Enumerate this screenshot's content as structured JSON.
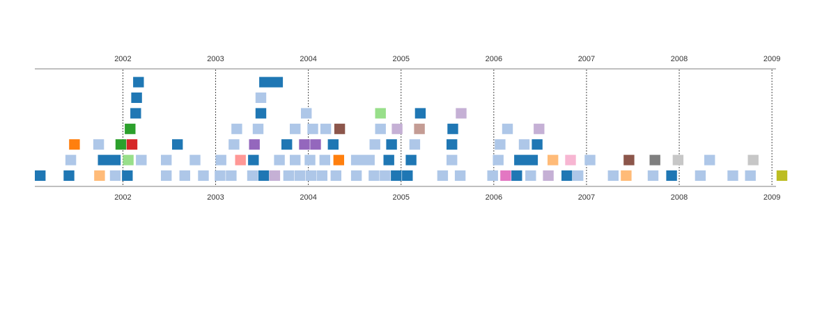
{
  "chart_data": {
    "type": "timeline",
    "title": "",
    "xlabel": "",
    "ylabel": "",
    "x_axis": {
      "scale": "time",
      "ticks": [
        "2002",
        "2003",
        "2004",
        "2005",
        "2006",
        "2007",
        "2008",
        "2009"
      ],
      "top_ticks_shown": true,
      "bottom_ticks_shown": true,
      "range": [
        2001.05,
        2009.05
      ]
    },
    "grid": "vertical dotted lines at year ticks",
    "legend": "none",
    "lanes": 7,
    "events": [
      {
        "start": 2001.05,
        "end": 2001.17,
        "lane": 0,
        "color": "#1f77b4"
      },
      {
        "start": 2001.36,
        "end": 2001.48,
        "lane": 0,
        "color": "#1f77b4"
      },
      {
        "start": 2001.69,
        "end": 2001.81,
        "lane": 0,
        "color": "#ffbb78"
      },
      {
        "start": 2001.86,
        "end": 2001.98,
        "lane": 0,
        "color": "#aec7e8"
      },
      {
        "start": 2001.99,
        "end": 2002.11,
        "lane": 0,
        "color": "#1f77b4"
      },
      {
        "start": 2002.41,
        "end": 2002.53,
        "lane": 0,
        "color": "#aec7e8"
      },
      {
        "start": 2002.61,
        "end": 2002.73,
        "lane": 0,
        "color": "#aec7e8"
      },
      {
        "start": 2002.81,
        "end": 2002.93,
        "lane": 0,
        "color": "#aec7e8"
      },
      {
        "start": 2002.99,
        "end": 2003.11,
        "lane": 0,
        "color": "#aec7e8"
      },
      {
        "start": 2003.11,
        "end": 2003.23,
        "lane": 0,
        "color": "#aec7e8"
      },
      {
        "start": 2003.34,
        "end": 2003.46,
        "lane": 0,
        "color": "#aec7e8"
      },
      {
        "start": 2003.46,
        "end": 2003.58,
        "lane": 0,
        "color": "#1f77b4"
      },
      {
        "start": 2003.58,
        "end": 2003.7,
        "lane": 0,
        "color": "#c5b0d5"
      },
      {
        "start": 2003.73,
        "end": 2003.85,
        "lane": 0,
        "color": "#aec7e8"
      },
      {
        "start": 2003.85,
        "end": 2003.97,
        "lane": 0,
        "color": "#aec7e8"
      },
      {
        "start": 2003.97,
        "end": 2004.09,
        "lane": 0,
        "color": "#aec7e8"
      },
      {
        "start": 2004.09,
        "end": 2004.21,
        "lane": 0,
        "color": "#aec7e8"
      },
      {
        "start": 2004.24,
        "end": 2004.36,
        "lane": 0,
        "color": "#aec7e8"
      },
      {
        "start": 2004.46,
        "end": 2004.58,
        "lane": 0,
        "color": "#aec7e8"
      },
      {
        "start": 2004.65,
        "end": 2004.77,
        "lane": 0,
        "color": "#aec7e8"
      },
      {
        "start": 2004.77,
        "end": 2004.89,
        "lane": 0,
        "color": "#aec7e8"
      },
      {
        "start": 2004.89,
        "end": 2005.01,
        "lane": 0,
        "color": "#1f77b4"
      },
      {
        "start": 2005.01,
        "end": 2005.13,
        "lane": 0,
        "color": "#1f77b4"
      },
      {
        "start": 2005.39,
        "end": 2005.51,
        "lane": 0,
        "color": "#aec7e8"
      },
      {
        "start": 2005.58,
        "end": 2005.7,
        "lane": 0,
        "color": "#aec7e8"
      },
      {
        "start": 2005.93,
        "end": 2006.05,
        "lane": 0,
        "color": "#aec7e8"
      },
      {
        "start": 2006.07,
        "end": 2006.19,
        "lane": 0,
        "color": "#e377c2"
      },
      {
        "start": 2006.19,
        "end": 2006.31,
        "lane": 0,
        "color": "#1f77b4"
      },
      {
        "start": 2006.34,
        "end": 2006.46,
        "lane": 0,
        "color": "#aec7e8"
      },
      {
        "start": 2006.53,
        "end": 2006.65,
        "lane": 0,
        "color": "#c5b0d5"
      },
      {
        "start": 2006.73,
        "end": 2006.85,
        "lane": 0,
        "color": "#1f77b4"
      },
      {
        "start": 2006.85,
        "end": 2006.97,
        "lane": 0,
        "color": "#aec7e8"
      },
      {
        "start": 2007.23,
        "end": 2007.35,
        "lane": 0,
        "color": "#aec7e8"
      },
      {
        "start": 2007.37,
        "end": 2007.49,
        "lane": 0,
        "color": "#ffbb78"
      },
      {
        "start": 2007.66,
        "end": 2007.78,
        "lane": 0,
        "color": "#aec7e8"
      },
      {
        "start": 2007.86,
        "end": 2007.98,
        "lane": 0,
        "color": "#1f77b4"
      },
      {
        "start": 2008.17,
        "end": 2008.29,
        "lane": 0,
        "color": "#aec7e8"
      },
      {
        "start": 2008.52,
        "end": 2008.64,
        "lane": 0,
        "color": "#aec7e8"
      },
      {
        "start": 2008.71,
        "end": 2008.83,
        "lane": 0,
        "color": "#aec7e8"
      },
      {
        "start": 2009.05,
        "end": 2009.17,
        "lane": 0,
        "color": "#bcbd22"
      },
      {
        "start": 2001.38,
        "end": 2001.5,
        "lane": 1,
        "color": "#aec7e8"
      },
      {
        "start": 2001.73,
        "end": 2001.98,
        "lane": 1,
        "color": "#1f77b4"
      },
      {
        "start": 2002.0,
        "end": 2002.12,
        "lane": 1,
        "color": "#98df8a"
      },
      {
        "start": 2002.14,
        "end": 2002.26,
        "lane": 1,
        "color": "#aec7e8"
      },
      {
        "start": 2002.41,
        "end": 2002.53,
        "lane": 1,
        "color": "#aec7e8"
      },
      {
        "start": 2002.72,
        "end": 2002.84,
        "lane": 1,
        "color": "#aec7e8"
      },
      {
        "start": 2003.0,
        "end": 2003.12,
        "lane": 1,
        "color": "#aec7e8"
      },
      {
        "start": 2003.21,
        "end": 2003.33,
        "lane": 1,
        "color": "#ff9896"
      },
      {
        "start": 2003.35,
        "end": 2003.47,
        "lane": 1,
        "color": "#1f77b4"
      },
      {
        "start": 2003.63,
        "end": 2003.75,
        "lane": 1,
        "color": "#aec7e8"
      },
      {
        "start": 2003.8,
        "end": 2003.92,
        "lane": 1,
        "color": "#aec7e8"
      },
      {
        "start": 2003.96,
        "end": 2004.08,
        "lane": 1,
        "color": "#aec7e8"
      },
      {
        "start": 2004.12,
        "end": 2004.24,
        "lane": 1,
        "color": "#aec7e8"
      },
      {
        "start": 2004.27,
        "end": 2004.39,
        "lane": 1,
        "color": "#ff7f0e"
      },
      {
        "start": 2004.46,
        "end": 2004.72,
        "lane": 1,
        "color": "#aec7e8"
      },
      {
        "start": 2004.81,
        "end": 2004.93,
        "lane": 1,
        "color": "#1f77b4"
      },
      {
        "start": 2005.05,
        "end": 2005.17,
        "lane": 1,
        "color": "#1f77b4"
      },
      {
        "start": 2005.49,
        "end": 2005.61,
        "lane": 1,
        "color": "#aec7e8"
      },
      {
        "start": 2005.99,
        "end": 2006.11,
        "lane": 1,
        "color": "#aec7e8"
      },
      {
        "start": 2006.22,
        "end": 2006.48,
        "lane": 1,
        "color": "#1f77b4"
      },
      {
        "start": 2006.58,
        "end": 2006.7,
        "lane": 1,
        "color": "#ffbb78"
      },
      {
        "start": 2006.77,
        "end": 2006.89,
        "lane": 1,
        "color": "#f7b6d2"
      },
      {
        "start": 2006.98,
        "end": 2007.1,
        "lane": 1,
        "color": "#aec7e8"
      },
      {
        "start": 2007.4,
        "end": 2007.52,
        "lane": 1,
        "color": "#8c564b"
      },
      {
        "start": 2007.68,
        "end": 2007.8,
        "lane": 1,
        "color": "#7f7f7f"
      },
      {
        "start": 2007.93,
        "end": 2008.05,
        "lane": 1,
        "color": "#c7c7c7"
      },
      {
        "start": 2008.27,
        "end": 2008.39,
        "lane": 1,
        "color": "#aec7e8"
      },
      {
        "start": 2008.74,
        "end": 2008.86,
        "lane": 1,
        "color": "#c7c7c7"
      },
      {
        "start": 2001.42,
        "end": 2001.54,
        "lane": 2,
        "color": "#ff7f0e"
      },
      {
        "start": 2001.68,
        "end": 2001.8,
        "lane": 2,
        "color": "#aec7e8"
      },
      {
        "start": 2001.92,
        "end": 2002.04,
        "lane": 2,
        "color": "#2ca02c"
      },
      {
        "start": 2002.04,
        "end": 2002.16,
        "lane": 2,
        "color": "#d62728"
      },
      {
        "start": 2002.53,
        "end": 2002.65,
        "lane": 2,
        "color": "#1f77b4"
      },
      {
        "start": 2003.14,
        "end": 2003.26,
        "lane": 2,
        "color": "#aec7e8"
      },
      {
        "start": 2003.36,
        "end": 2003.48,
        "lane": 2,
        "color": "#9467bd"
      },
      {
        "start": 2003.71,
        "end": 2003.83,
        "lane": 2,
        "color": "#1f77b4"
      },
      {
        "start": 2003.9,
        "end": 2004.02,
        "lane": 2,
        "color": "#9467bd"
      },
      {
        "start": 2004.02,
        "end": 2004.14,
        "lane": 2,
        "color": "#9467bd"
      },
      {
        "start": 2004.21,
        "end": 2004.33,
        "lane": 2,
        "color": "#1f77b4"
      },
      {
        "start": 2004.66,
        "end": 2004.78,
        "lane": 2,
        "color": "#aec7e8"
      },
      {
        "start": 2004.84,
        "end": 2004.96,
        "lane": 2,
        "color": "#1f77b4"
      },
      {
        "start": 2005.09,
        "end": 2005.21,
        "lane": 2,
        "color": "#aec7e8"
      },
      {
        "start": 2005.49,
        "end": 2005.61,
        "lane": 2,
        "color": "#1f77b4"
      },
      {
        "start": 2006.01,
        "end": 2006.13,
        "lane": 2,
        "color": "#aec7e8"
      },
      {
        "start": 2006.27,
        "end": 2006.39,
        "lane": 2,
        "color": "#aec7e8"
      },
      {
        "start": 2006.41,
        "end": 2006.53,
        "lane": 2,
        "color": "#1f77b4"
      },
      {
        "start": 2002.02,
        "end": 2002.14,
        "lane": 3,
        "color": "#2ca02c"
      },
      {
        "start": 2003.17,
        "end": 2003.29,
        "lane": 3,
        "color": "#aec7e8"
      },
      {
        "start": 2003.4,
        "end": 2003.52,
        "lane": 3,
        "color": "#aec7e8"
      },
      {
        "start": 2003.8,
        "end": 2003.92,
        "lane": 3,
        "color": "#aec7e8"
      },
      {
        "start": 2003.99,
        "end": 2004.11,
        "lane": 3,
        "color": "#aec7e8"
      },
      {
        "start": 2004.13,
        "end": 2004.25,
        "lane": 3,
        "color": "#aec7e8"
      },
      {
        "start": 2004.28,
        "end": 2004.4,
        "lane": 3,
        "color": "#8c564b"
      },
      {
        "start": 2004.72,
        "end": 2004.84,
        "lane": 3,
        "color": "#aec7e8"
      },
      {
        "start": 2004.9,
        "end": 2005.02,
        "lane": 3,
        "color": "#c5b0d5"
      },
      {
        "start": 2005.14,
        "end": 2005.26,
        "lane": 3,
        "color": "#c49c94"
      },
      {
        "start": 2005.5,
        "end": 2005.62,
        "lane": 3,
        "color": "#1f77b4"
      },
      {
        "start": 2006.09,
        "end": 2006.21,
        "lane": 3,
        "color": "#aec7e8"
      },
      {
        "start": 2006.43,
        "end": 2006.55,
        "lane": 3,
        "color": "#c5b0d5"
      },
      {
        "start": 2002.08,
        "end": 2002.2,
        "lane": 4,
        "color": "#1f77b4"
      },
      {
        "start": 2003.43,
        "end": 2003.55,
        "lane": 4,
        "color": "#1f77b4"
      },
      {
        "start": 2003.92,
        "end": 2004.04,
        "lane": 4,
        "color": "#aec7e8"
      },
      {
        "start": 2004.72,
        "end": 2004.84,
        "lane": 4,
        "color": "#98df8a"
      },
      {
        "start": 2005.15,
        "end": 2005.27,
        "lane": 4,
        "color": "#1f77b4"
      },
      {
        "start": 2005.59,
        "end": 2005.71,
        "lane": 4,
        "color": "#c5b0d5"
      },
      {
        "start": 2002.09,
        "end": 2002.21,
        "lane": 5,
        "color": "#1f77b4"
      },
      {
        "start": 2003.43,
        "end": 2003.55,
        "lane": 5,
        "color": "#aec7e8"
      },
      {
        "start": 2002.11,
        "end": 2002.23,
        "lane": 6,
        "color": "#1f77b4"
      },
      {
        "start": 2003.47,
        "end": 2003.73,
        "lane": 6,
        "color": "#1f77b4"
      }
    ]
  }
}
